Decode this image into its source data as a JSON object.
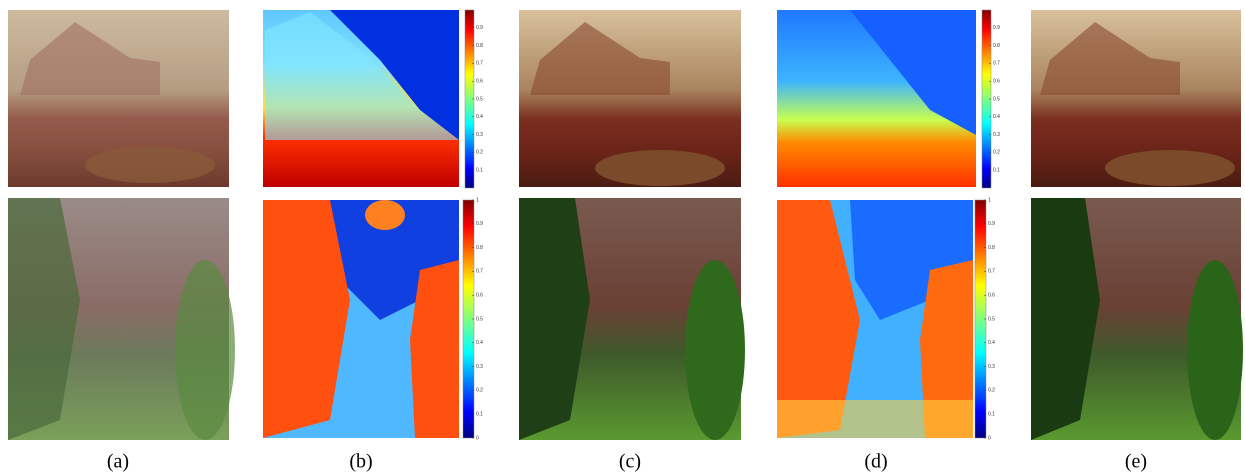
{
  "panels": [
    {
      "caption": "(a)"
    },
    {
      "caption": "(b)",
      "colorbars": [
        {
          "lim": [
            0,
            1
          ],
          "ticks": [
            0.9,
            0.8,
            0.7,
            0.6,
            0.5,
            0.4,
            0.3,
            0.2,
            0.1
          ]
        },
        {
          "lim": [
            0,
            1
          ],
          "ticks": [
            1,
            0.9,
            0.8,
            0.7,
            0.6,
            0.5,
            0.4,
            0.3,
            0.2,
            0.1,
            0
          ]
        }
      ]
    },
    {
      "caption": "(c)"
    },
    {
      "caption": "(d)",
      "colorbars": [
        {
          "lim": [
            0,
            1
          ],
          "ticks": [
            0.9,
            0.8,
            0.7,
            0.6,
            0.5,
            0.4,
            0.3,
            0.2,
            0.1
          ]
        },
        {
          "lim": [
            0,
            1
          ],
          "ticks": [
            1,
            0.9,
            0.8,
            0.7,
            0.6,
            0.5,
            0.4,
            0.3,
            0.2,
            0.1,
            0
          ]
        }
      ]
    },
    {
      "caption": "(e)"
    }
  ]
}
